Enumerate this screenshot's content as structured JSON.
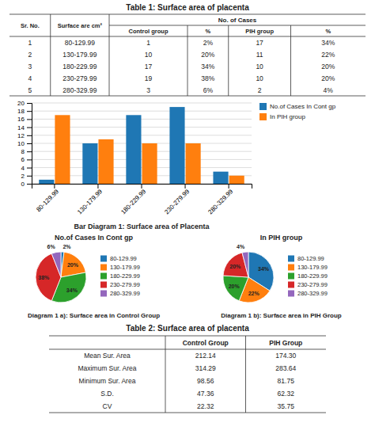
{
  "chart_data": [
    {
      "type": "table",
      "title": "Table 1: Surface area of placenta",
      "columns": [
        "Sr. No.",
        "Surface are cm²",
        "Control group",
        "%",
        "PIH group",
        "%"
      ],
      "column_group": "No. of Cases",
      "rows": [
        [
          "1",
          "80-129.99",
          "1",
          "2%",
          "17",
          "34%"
        ],
        [
          "2",
          "130-179.99",
          "10",
          "20%",
          "11",
          "22%"
        ],
        [
          "3",
          "180-229.99",
          "17",
          "34%",
          "10",
          "20%"
        ],
        [
          "4",
          "230-279.99",
          "19",
          "38%",
          "10",
          "20%"
        ],
        [
          "5",
          "280-329.99",
          "3",
          "6%",
          "2",
          "4%"
        ]
      ]
    },
    {
      "type": "bar",
      "categories": [
        "80-129.99",
        "130-179.99",
        "180-229.99",
        "230-279.99",
        "280-329.99"
      ],
      "series": [
        {
          "name": "No.of Cases In Cont gp",
          "values": [
            1,
            10,
            17,
            19,
            3
          ]
        },
        {
          "name": "In PIH group",
          "values": [
            17,
            11,
            10,
            10,
            2
          ]
        }
      ],
      "ylim": [
        0,
        20
      ],
      "yticks": [
        0,
        2,
        4,
        6,
        8,
        10,
        12,
        14,
        16,
        18,
        20
      ],
      "grid": true,
      "legend": "upper right",
      "annotations": [
        "Bar Diagram 1: Surface area of Placenta"
      ]
    },
    {
      "type": "pie",
      "title": "No.of Cases In Cont gp",
      "categories": [
        "80-129.99",
        "130-179.99",
        "180-229.99",
        "230-279.99",
        "280-329.99"
      ],
      "values": [
        2,
        20,
        34,
        38,
        6
      ],
      "value_labels": [
        "2%",
        "20%",
        "34%",
        "38%",
        "6%"
      ],
      "data_labels": true,
      "legend": "right",
      "annotations": [
        "Diagram 1 a): Surface area in Control Group"
      ]
    },
    {
      "type": "pie",
      "title": "In PIH group",
      "categories": [
        "80-129.99",
        "130-179.99",
        "180-229.99",
        "230-279.99",
        "280-329.99"
      ],
      "values": [
        34,
        22,
        20,
        20,
        4
      ],
      "value_labels": [
        "34%",
        "22%",
        "20%",
        "20%",
        "4%"
      ],
      "data_labels": true,
      "legend": "right",
      "annotations": [
        "Diagram 1 b): Surface area in PIH Group"
      ]
    },
    {
      "type": "table",
      "title": "Table 2: Surface area of placenta",
      "columns": [
        null,
        "Control Group",
        "PIH Group"
      ],
      "rows": [
        [
          "Mean Sur. Area",
          "212.14",
          "174.30"
        ],
        [
          "Maximum Sur. Area",
          "314.29",
          "283.64"
        ],
        [
          "Minimum Sur. Area",
          "98.56",
          "81.75"
        ],
        [
          "S.D.",
          "47.36",
          "62.32"
        ],
        [
          "CV",
          "22.32",
          "35.75"
        ]
      ]
    }
  ]
}
